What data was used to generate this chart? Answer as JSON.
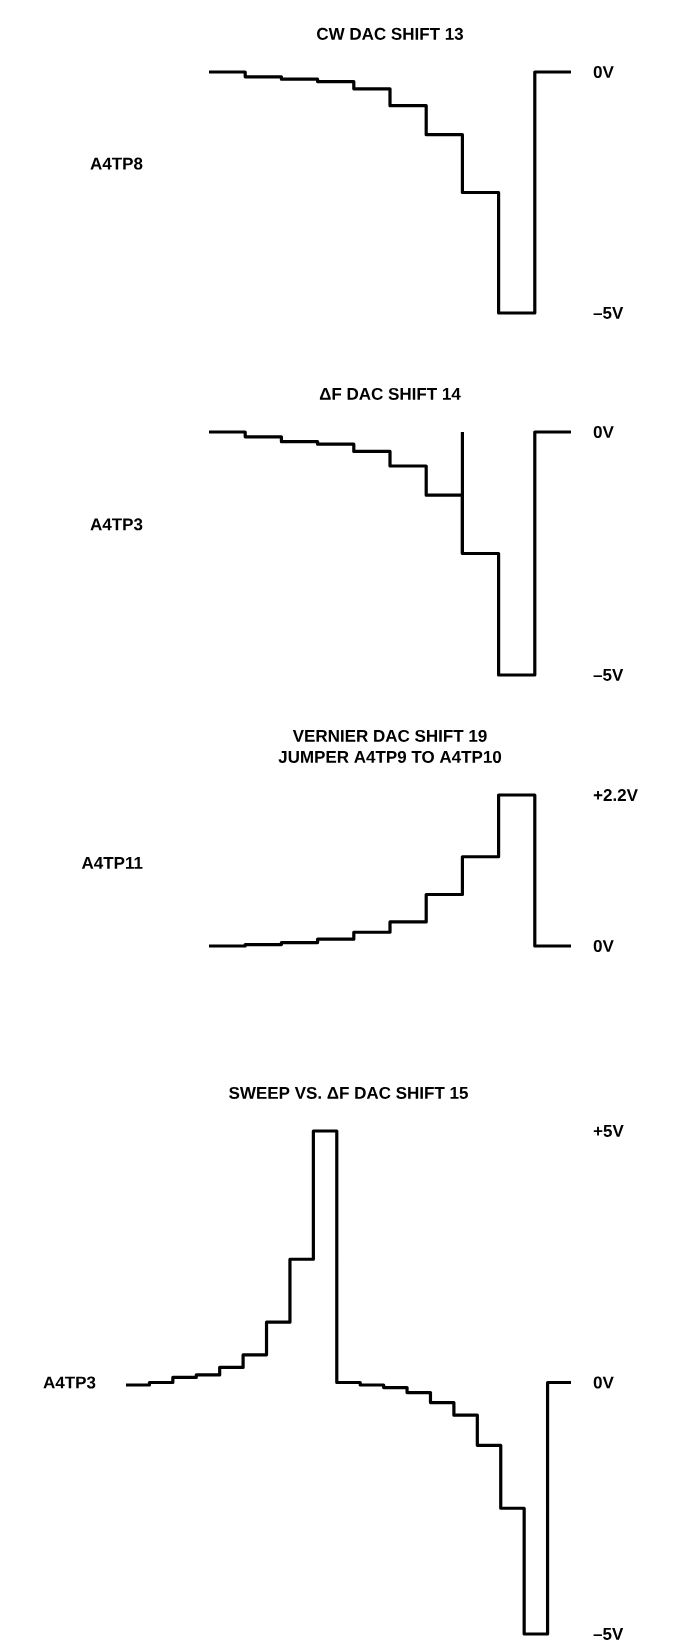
{
  "chart_data": [
    {
      "type": "step",
      "title": "CW DAC SHIFT 13",
      "ylabel": "A4TP8",
      "color": "#000000",
      "line_style": "solid",
      "tick_labels": "y",
      "categories": [
        null,
        null,
        null,
        null,
        null,
        null,
        null,
        null,
        null,
        null,
        null
      ],
      "values": [
        0,
        -0.1,
        -0.15,
        -0.2,
        -0.35,
        -0.7,
        -1.3,
        -2.5,
        -5,
        0,
        0
      ],
      "ylim": [
        -5,
        0
      ],
      "yticks": [
        {
          "value": 0,
          "label": "0V"
        },
        {
          "value": -5,
          "label": "–5V"
        }
      ]
    },
    {
      "type": "step",
      "title": "ΔF DAC SHIFT 14",
      "ylabel": "A4TP3",
      "color": "#000000",
      "line_style": "solid",
      "tick_labels": "y",
      "categories": [
        null,
        null,
        null,
        null,
        null,
        null,
        null,
        null,
        null,
        null,
        null
      ],
      "values": [
        0,
        -0.1,
        -0.2,
        -0.25,
        -0.4,
        -0.7,
        -1.3,
        -2.5,
        -5,
        0,
        0
      ],
      "errors": [
        null,
        null,
        null,
        null,
        null,
        null,
        null,
        [
          -2.5,
          0
        ],
        null,
        null,
        null
      ],
      "ylim": [
        -5,
        0
      ],
      "yticks": [
        {
          "value": 0,
          "label": "0V"
        },
        {
          "value": -5,
          "label": "–5V"
        }
      ]
    },
    {
      "type": "step",
      "title": "VERNIER DAC SHIFT 19",
      "subtitle": "JUMPER A4TP9 TO A4TP10",
      "ylabel": "A4TP11",
      "color": "#000000",
      "line_style": "solid",
      "tick_labels": "y",
      "categories": [
        null,
        null,
        null,
        null,
        null,
        null,
        null,
        null,
        null,
        null,
        null
      ],
      "values": [
        0,
        0.02,
        0.05,
        0.1,
        0.2,
        0.35,
        0.75,
        1.3,
        2.2,
        0,
        0
      ],
      "ylim": [
        0,
        2.2
      ],
      "yticks": [
        {
          "value": 2.2,
          "label": "+2.2V"
        },
        {
          "value": 0,
          "label": "0V"
        }
      ]
    },
    {
      "type": "step",
      "title": "SWEEP VS. ΔF DAC SHIFT 15",
      "ylabel": "A4TP3",
      "color": "#000000",
      "line_style": "solid",
      "tick_labels": "y",
      "categories": [
        null,
        null,
        null,
        null,
        null,
        null,
        null,
        null,
        null,
        null,
        null,
        null,
        null,
        null,
        null,
        null,
        null,
        null,
        null,
        null
      ],
      "values": [
        -0.05,
        0,
        0.1,
        0.15,
        0.3,
        0.55,
        1.2,
        2.45,
        5,
        0,
        -0.05,
        -0.1,
        -0.2,
        -0.4,
        -0.65,
        -1.25,
        -2.5,
        -5,
        0,
        0
      ],
      "ylim": [
        -5,
        5
      ],
      "yticks": [
        {
          "value": 5,
          "label": "+5V"
        },
        {
          "value": 0,
          "label": "0V"
        },
        {
          "value": -5,
          "label": "–5V"
        }
      ]
    }
  ]
}
